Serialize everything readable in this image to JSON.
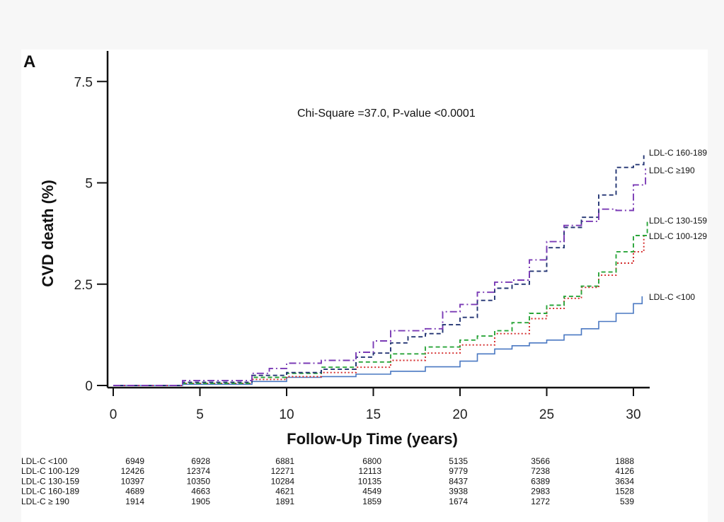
{
  "chart_data": {
    "type": "line",
    "panel_label": "A",
    "annotation": "Chi-Square =37.0, P-value <0.0001",
    "xlabel": "Follow-Up Time (years)",
    "ylabel": "CVD death (%)",
    "xlim": [
      0,
      31
    ],
    "ylim": [
      0,
      7.5
    ],
    "x_ticks": [
      "0",
      "5",
      "10",
      "15",
      "20",
      "25",
      "30"
    ],
    "y_ticks": [
      "0",
      "2.5",
      "5",
      "7.5"
    ],
    "series": [
      {
        "name": "LDL-C  <100",
        "color": "#4a78c2",
        "style": "solid",
        "points": [
          [
            0,
            0
          ],
          [
            4,
            0.03
          ],
          [
            8,
            0.1
          ],
          [
            10,
            0.2
          ],
          [
            12,
            0.22
          ],
          [
            14,
            0.28
          ],
          [
            16,
            0.35
          ],
          [
            18,
            0.46
          ],
          [
            20,
            0.6
          ],
          [
            21,
            0.78
          ],
          [
            22,
            0.9
          ],
          [
            23,
            0.98
          ],
          [
            24,
            1.05
          ],
          [
            25,
            1.12
          ],
          [
            26,
            1.25
          ],
          [
            27,
            1.4
          ],
          [
            28,
            1.58
          ],
          [
            29,
            1.78
          ],
          [
            30,
            2.02
          ],
          [
            30.5,
            2.2
          ]
        ]
      },
      {
        "name": "LDL-C  100-129",
        "color": "#d42a2a",
        "style": "dotted",
        "points": [
          [
            0,
            0
          ],
          [
            4,
            0.05
          ],
          [
            8,
            0.15
          ],
          [
            10,
            0.22
          ],
          [
            12,
            0.32
          ],
          [
            14,
            0.45
          ],
          [
            16,
            0.62
          ],
          [
            18,
            0.8
          ],
          [
            20,
            1.0
          ],
          [
            22,
            1.28
          ],
          [
            24,
            1.65
          ],
          [
            25,
            1.9
          ],
          [
            26,
            2.15
          ],
          [
            27,
            2.42
          ],
          [
            28,
            2.72
          ],
          [
            29,
            3.02
          ],
          [
            30,
            3.3
          ],
          [
            30.6,
            3.7
          ]
        ]
      },
      {
        "name": "LDL-C  130-159",
        "color": "#2aa53a",
        "style": "dashed",
        "points": [
          [
            0,
            0
          ],
          [
            4,
            0.05
          ],
          [
            8,
            0.2
          ],
          [
            10,
            0.3
          ],
          [
            12,
            0.45
          ],
          [
            14,
            0.58
          ],
          [
            16,
            0.78
          ],
          [
            18,
            0.95
          ],
          [
            20,
            1.12
          ],
          [
            21,
            1.22
          ],
          [
            22,
            1.35
          ],
          [
            23,
            1.55
          ],
          [
            24,
            1.78
          ],
          [
            25,
            1.98
          ],
          [
            26,
            2.2
          ],
          [
            27,
            2.45
          ],
          [
            28,
            2.8
          ],
          [
            29,
            3.3
          ],
          [
            30,
            3.7
          ],
          [
            30.8,
            4.05
          ]
        ]
      },
      {
        "name": "LDL-C  160-189",
        "color": "#233573",
        "style": "dashed",
        "points": [
          [
            0,
            0
          ],
          [
            4,
            0.08
          ],
          [
            8,
            0.25
          ],
          [
            10,
            0.32
          ],
          [
            12,
            0.4
          ],
          [
            14,
            0.7
          ],
          [
            15,
            0.8
          ],
          [
            16,
            1.05
          ],
          [
            17,
            1.2
          ],
          [
            18,
            1.28
          ],
          [
            19,
            1.5
          ],
          [
            20,
            1.68
          ],
          [
            21,
            2.1
          ],
          [
            22,
            2.4
          ],
          [
            23,
            2.5
          ],
          [
            24,
            2.82
          ],
          [
            25,
            3.4
          ],
          [
            26,
            3.9
          ],
          [
            27,
            4.15
          ],
          [
            28,
            4.7
          ],
          [
            29,
            5.38
          ],
          [
            30,
            5.45
          ],
          [
            30.6,
            5.68
          ]
        ]
      },
      {
        "name": "LDL-C  ≥190",
        "color": "#7a3ab5",
        "style": "dashdot",
        "points": [
          [
            0,
            0
          ],
          [
            4,
            0.12
          ],
          [
            8,
            0.3
          ],
          [
            9,
            0.42
          ],
          [
            10,
            0.55
          ],
          [
            12,
            0.62
          ],
          [
            14,
            0.82
          ],
          [
            15,
            1.1
          ],
          [
            16,
            1.35
          ],
          [
            18,
            1.4
          ],
          [
            19,
            1.82
          ],
          [
            20,
            2.0
          ],
          [
            21,
            2.3
          ],
          [
            22,
            2.55
          ],
          [
            23,
            2.6
          ],
          [
            24,
            3.1
          ],
          [
            25,
            3.55
          ],
          [
            26,
            3.95
          ],
          [
            27,
            4.05
          ],
          [
            28,
            4.35
          ],
          [
            29,
            4.32
          ],
          [
            30,
            4.95
          ],
          [
            30.7,
            5.35
          ]
        ]
      }
    ],
    "risk_table": {
      "times": [
        0,
        5,
        10,
        15,
        20,
        25,
        30
      ],
      "rows": [
        {
          "label": "LDL-C <100",
          "values": [
            "6949",
            "6928",
            "6881",
            "6800",
            "5135",
            "3566",
            "1888"
          ]
        },
        {
          "label": "LDL-C 100-129",
          "values": [
            "12426",
            "12374",
            "12271",
            "12113",
            "9779",
            "7238",
            "4126"
          ]
        },
        {
          "label": "LDL-C 130-159",
          "values": [
            "10397",
            "10350",
            "10284",
            "10135",
            "8437",
            "6389",
            "3634"
          ]
        },
        {
          "label": "LDL-C 160-189",
          "values": [
            "4689",
            "4663",
            "4621",
            "4549",
            "3938",
            "2983",
            "1528"
          ]
        },
        {
          "label": "LDL-C ≥ 190",
          "values": [
            "1914",
            "1905",
            "1891",
            "1859",
            "1674",
            "1272",
            "539"
          ]
        }
      ]
    }
  }
}
